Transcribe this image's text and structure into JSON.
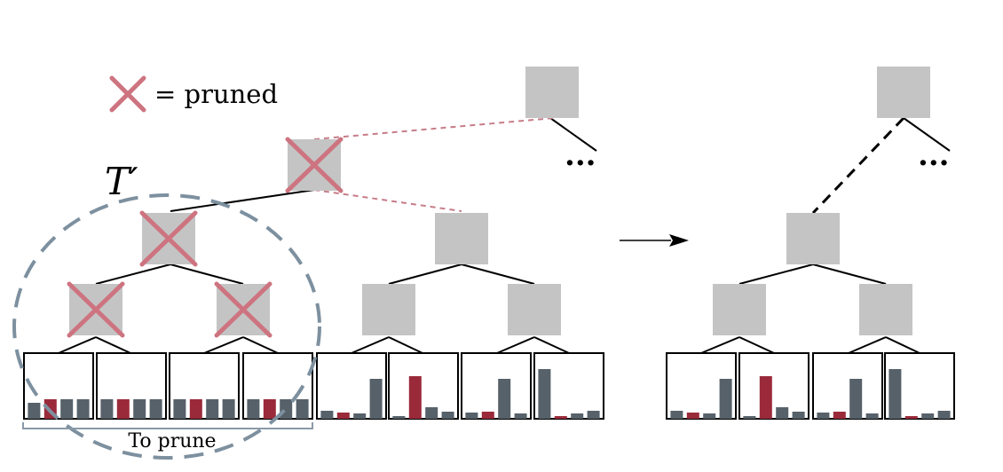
{
  "legend": {
    "text": "= pruned"
  },
  "subtree_label": {
    "base": "T",
    "prime": "′"
  },
  "prune_label": "To prune",
  "ellipsis": "···",
  "colors": {
    "node": "#c4c4c4",
    "prune_mark": "#cd7480",
    "bar_gray": "#56616a",
    "bar_red": "#9a2a3a",
    "circle": "#7d909f",
    "pink_edge": "#c77c88"
  },
  "leaf_histograms": {
    "pruned": [
      [
        0.18,
        0.22,
        0.22,
        0.22
      ],
      [
        0.22,
        0.22,
        0.22,
        0.22
      ],
      [
        0.22,
        0.22,
        0.22,
        0.22
      ],
      [
        0.22,
        0.22,
        0.22,
        0.22
      ]
    ],
    "remaining": [
      [
        0.09,
        0.07,
        0.06,
        0.45
      ],
      [
        0.03,
        0.48,
        0.13,
        0.08
      ],
      [
        0.07,
        0.08,
        0.45,
        0.06
      ],
      [
        0.56,
        0.03,
        0.06,
        0.09
      ]
    ],
    "highlight_index": [
      1,
      1,
      1,
      1
    ],
    "remaining_highlight_index": [
      1,
      1,
      1,
      1
    ]
  }
}
